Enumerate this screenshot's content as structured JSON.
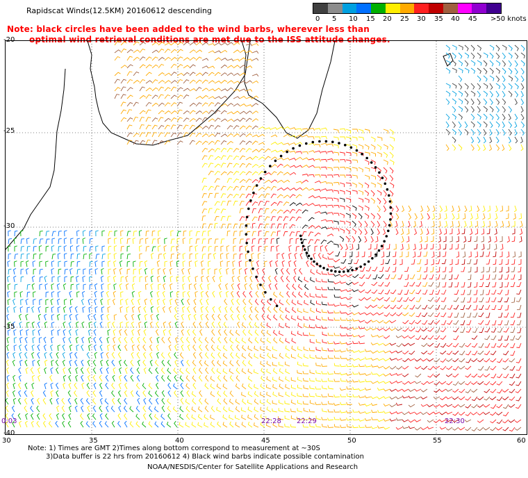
{
  "header": {
    "title": "Rapidscat Winds(12.5KM) 20160612 descending"
  },
  "notice": {
    "line1": "Note: black circles have been added to the wind barbs, wherever less than",
    "line2": "optimal wind retrieval conditions are met due to the ISS attitude changes."
  },
  "legend": {
    "labels": [
      "0",
      "5",
      "10",
      "15",
      "20",
      "25",
      "30",
      "35",
      "40",
      "45",
      ">50 knots"
    ],
    "colors": [
      "#404040",
      "#8c8c8c",
      "#00a0e0",
      "#0070ff",
      "#00b000",
      "#ffee00",
      "#ffaa00",
      "#ff2020",
      "#c00000",
      "#a06040",
      "#ff00ff",
      "#9000d0",
      "#400090"
    ]
  },
  "map": {
    "lat_labels": [
      "-20",
      "-25",
      "-30",
      "-35",
      "-40"
    ],
    "lon_labels": [
      "30",
      "35",
      "40",
      "45",
      "50",
      "55",
      "60"
    ],
    "time_labels": [
      "0:03",
      "22:28",
      "22:29",
      "22:30"
    ]
  },
  "footer": {
    "line1": "Note: 1) Times are GMT 2)Times along bottom correspond to measurement at ~30S",
    "line2": "3)Data buffer is 22 hrs from 20160612 4) Black wind barbs indicate possible contamination",
    "credit": "NOAA/NESDIS/Center for Satellite Applications and Research"
  }
}
